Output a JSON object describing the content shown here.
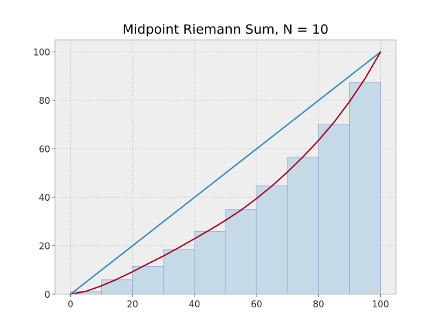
{
  "chart_data": {
    "type": "bar",
    "title": "Midpoint Riemann Sum, N = 10",
    "xlabel": "",
    "ylabel": "",
    "xlim": [
      -5,
      105
    ],
    "ylim": [
      0,
      105
    ],
    "x_ticks": [
      0,
      20,
      40,
      60,
      80,
      100
    ],
    "y_ticks": [
      0,
      20,
      40,
      60,
      80,
      100
    ],
    "grid": true,
    "bars": {
      "x_left": [
        0,
        10,
        20,
        30,
        40,
        50,
        60,
        70,
        80,
        90
      ],
      "width": 10,
      "values": [
        1.2,
        6.0,
        11.5,
        18.5,
        26.0,
        35.0,
        44.8,
        56.5,
        70.0,
        87.5
      ]
    },
    "series": [
      {
        "type": "line",
        "x": [
          0,
          100
        ],
        "y": [
          0,
          100
        ],
        "color": "#348abd"
      },
      {
        "type": "line",
        "x": [
          0,
          5,
          10,
          15,
          20,
          25,
          30,
          35,
          40,
          45,
          50,
          55,
          60,
          65,
          70,
          75,
          80,
          85,
          90,
          95,
          100
        ],
        "y": [
          0,
          1.2,
          3.5,
          6.2,
          9.3,
          12.6,
          15.8,
          19.3,
          22.9,
          26.6,
          30.5,
          34.7,
          39.5,
          44.7,
          50.5,
          56.7,
          63.5,
          71.0,
          79.5,
          89.0,
          100
        ],
        "color": "#a60628"
      }
    ],
    "colors": {
      "axes_bg": "#eeeeee",
      "grid": "#b2b2b2",
      "bar_fill": "#c6d9e6",
      "bar_edge": "#8fa6dc",
      "spine": "#bcbcbc"
    }
  }
}
